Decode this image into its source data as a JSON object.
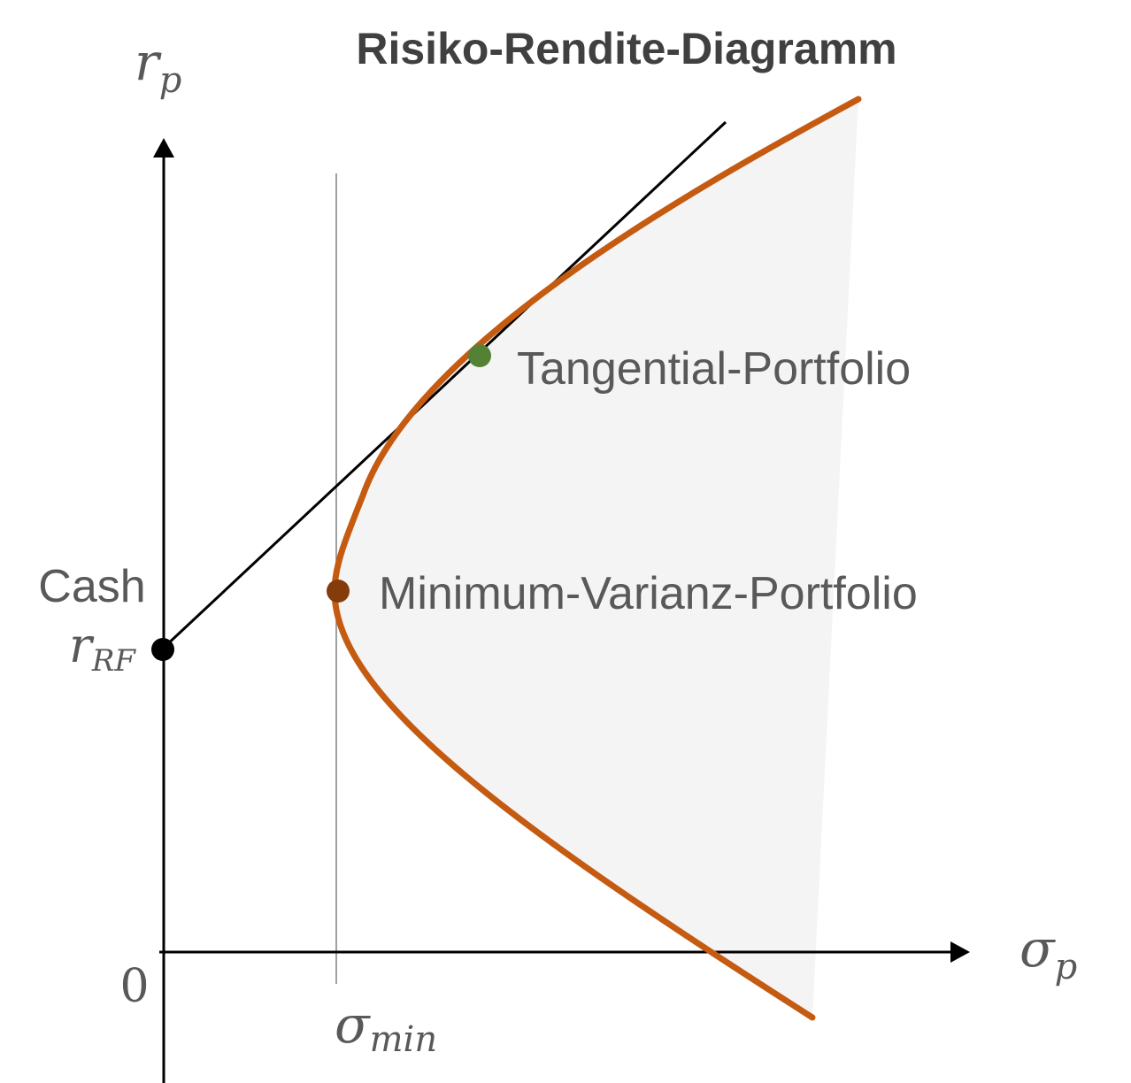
{
  "title": "Risiko-Rendite-Diagramm",
  "axes": {
    "y_symbol": "r",
    "y_subscript": "p",
    "x_symbol": "σ",
    "x_subscript": "p",
    "origin_label": "0"
  },
  "cash": {
    "label": "Cash",
    "rate_symbol": "r",
    "rate_subscript": "RF"
  },
  "sigma_min": {
    "symbol": "σ",
    "subscript": "min"
  },
  "points": {
    "tangential_label": "Tangential-Portfolio",
    "minimum_variance_label": "Minimum-Varianz-Portfolio"
  },
  "colors": {
    "frontier": "#c55a11",
    "tangential_point": "#548235",
    "minimum_variance_point": "#843c0c",
    "cash_point": "#000000",
    "feasible_region_fill": "#f4f4f4",
    "text_gray": "#595959",
    "title_gray": "#404040"
  }
}
